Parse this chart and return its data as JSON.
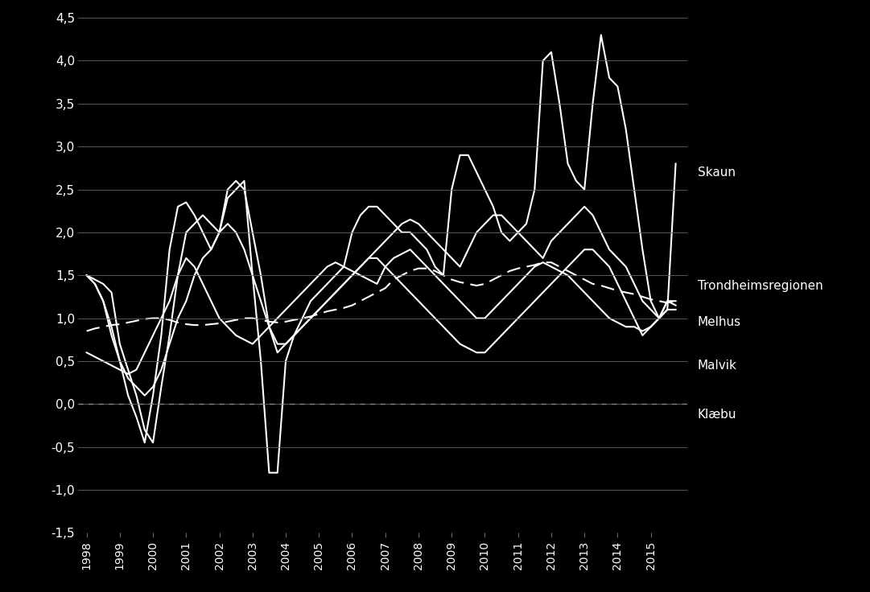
{
  "background_color": "#000000",
  "text_color": "#ffffff",
  "grid_color": "#666666",
  "ylim": [
    -1.5,
    4.5
  ],
  "yticks": [
    -1.5,
    -1.0,
    -0.5,
    0.0,
    0.5,
    1.0,
    1.5,
    2.0,
    2.5,
    3.0,
    3.5,
    4.0,
    4.5
  ],
  "xlim_start": 1997.75,
  "xlim_end": 2016.1,
  "legend_labels": [
    "Skaun",
    "Trondheimsregionen",
    "Melhus",
    "Malvik",
    "Klæbu"
  ],
  "legend_y_positions": [
    2.7,
    1.38,
    0.95,
    0.45,
    -0.12
  ],
  "Trondheimsregionen": [
    0.85,
    0.88,
    0.9,
    0.92,
    0.93,
    0.95,
    0.97,
    0.99,
    1.0,
    1.0,
    0.98,
    0.95,
    0.93,
    0.92,
    0.92,
    0.93,
    0.94,
    0.96,
    0.98,
    1.0,
    1.0,
    0.98,
    0.96,
    0.95,
    0.96,
    0.98,
    1.0,
    1.02,
    1.05,
    1.08,
    1.1,
    1.12,
    1.15,
    1.2,
    1.25,
    1.3,
    1.35,
    1.45,
    1.5,
    1.55,
    1.58,
    1.58,
    1.55,
    1.5,
    1.45,
    1.42,
    1.4,
    1.38,
    1.4,
    1.45,
    1.5,
    1.55,
    1.58,
    1.6,
    1.62,
    1.65,
    1.65,
    1.6,
    1.55,
    1.5,
    1.45,
    1.4,
    1.38,
    1.35,
    1.32,
    1.3,
    1.28,
    1.25,
    1.22,
    1.2,
    1.18,
    1.2
  ],
  "Skaun": [
    1.5,
    1.45,
    1.4,
    1.3,
    0.7,
    0.4,
    0.1,
    -0.3,
    -0.45,
    0.2,
    0.8,
    1.5,
    2.0,
    2.1,
    2.2,
    2.1,
    2.0,
    2.4,
    2.5,
    2.6,
    1.5,
    0.5,
    -0.8,
    -0.8,
    0.5,
    0.8,
    1.0,
    1.2,
    1.3,
    1.4,
    1.5,
    1.6,
    2.0,
    2.2,
    2.3,
    2.3,
    2.2,
    2.1,
    2.0,
    2.0,
    1.9,
    1.8,
    1.6,
    1.5,
    2.5,
    2.9,
    2.9,
    2.7,
    2.5,
    2.3,
    2.0,
    1.9,
    2.0,
    2.1,
    2.5,
    4.0,
    4.1,
    3.5,
    2.8,
    2.6,
    2.5,
    3.5,
    4.3,
    3.8,
    3.7,
    3.2,
    2.5,
    1.8,
    1.2,
    1.0,
    1.1,
    2.8
  ],
  "Klaebu": [
    1.5,
    1.4,
    1.2,
    0.9,
    0.5,
    0.1,
    -0.15,
    -0.45,
    0.1,
    0.8,
    1.8,
    2.3,
    2.35,
    2.2,
    2.0,
    1.8,
    2.0,
    2.5,
    2.6,
    2.5,
    2.0,
    1.5,
    0.9,
    0.6,
    0.7,
    0.8,
    0.9,
    1.0,
    1.1,
    1.2,
    1.3,
    1.4,
    1.5,
    1.6,
    1.7,
    1.8,
    1.9,
    2.0,
    2.1,
    2.15,
    2.1,
    2.0,
    1.9,
    1.8,
    1.7,
    1.6,
    1.8,
    2.0,
    2.1,
    2.2,
    2.2,
    2.1,
    2.0,
    1.9,
    1.8,
    1.7,
    1.9,
    2.0,
    2.1,
    2.2,
    2.3,
    2.2,
    2.0,
    1.8,
    1.7,
    1.6,
    1.4,
    1.2,
    1.1,
    1.0,
    1.2,
    1.15
  ],
  "Malvik": [
    1.5,
    1.4,
    1.2,
    0.8,
    0.5,
    0.3,
    0.2,
    0.1,
    0.2,
    0.4,
    0.7,
    1.0,
    1.2,
    1.5,
    1.7,
    1.8,
    2.0,
    2.1,
    2.0,
    1.8,
    1.5,
    1.2,
    0.9,
    0.7,
    0.7,
    0.8,
    0.9,
    1.0,
    1.1,
    1.2,
    1.3,
    1.4,
    1.5,
    1.6,
    1.7,
    1.7,
    1.6,
    1.5,
    1.4,
    1.3,
    1.2,
    1.1,
    1.0,
    0.9,
    0.8,
    0.7,
    0.65,
    0.6,
    0.6,
    0.7,
    0.8,
    0.9,
    1.0,
    1.1,
    1.2,
    1.3,
    1.4,
    1.5,
    1.6,
    1.7,
    1.8,
    1.8,
    1.7,
    1.6,
    1.4,
    1.2,
    1.0,
    0.8,
    0.9,
    1.0,
    1.2,
    1.2
  ],
  "Melhus": [
    0.6,
    0.55,
    0.5,
    0.45,
    0.4,
    0.35,
    0.4,
    0.6,
    0.8,
    1.0,
    1.2,
    1.5,
    1.7,
    1.6,
    1.4,
    1.2,
    1.0,
    0.9,
    0.8,
    0.75,
    0.7,
    0.8,
    0.9,
    1.0,
    1.1,
    1.2,
    1.3,
    1.4,
    1.5,
    1.6,
    1.65,
    1.6,
    1.55,
    1.5,
    1.45,
    1.4,
    1.6,
    1.7,
    1.75,
    1.8,
    1.7,
    1.6,
    1.5,
    1.4,
    1.3,
    1.2,
    1.1,
    1.0,
    1.0,
    1.1,
    1.2,
    1.3,
    1.4,
    1.5,
    1.6,
    1.65,
    1.6,
    1.55,
    1.5,
    1.4,
    1.3,
    1.2,
    1.1,
    1.0,
    0.95,
    0.9,
    0.9,
    0.85,
    0.9,
    1.0,
    1.1,
    1.1
  ]
}
